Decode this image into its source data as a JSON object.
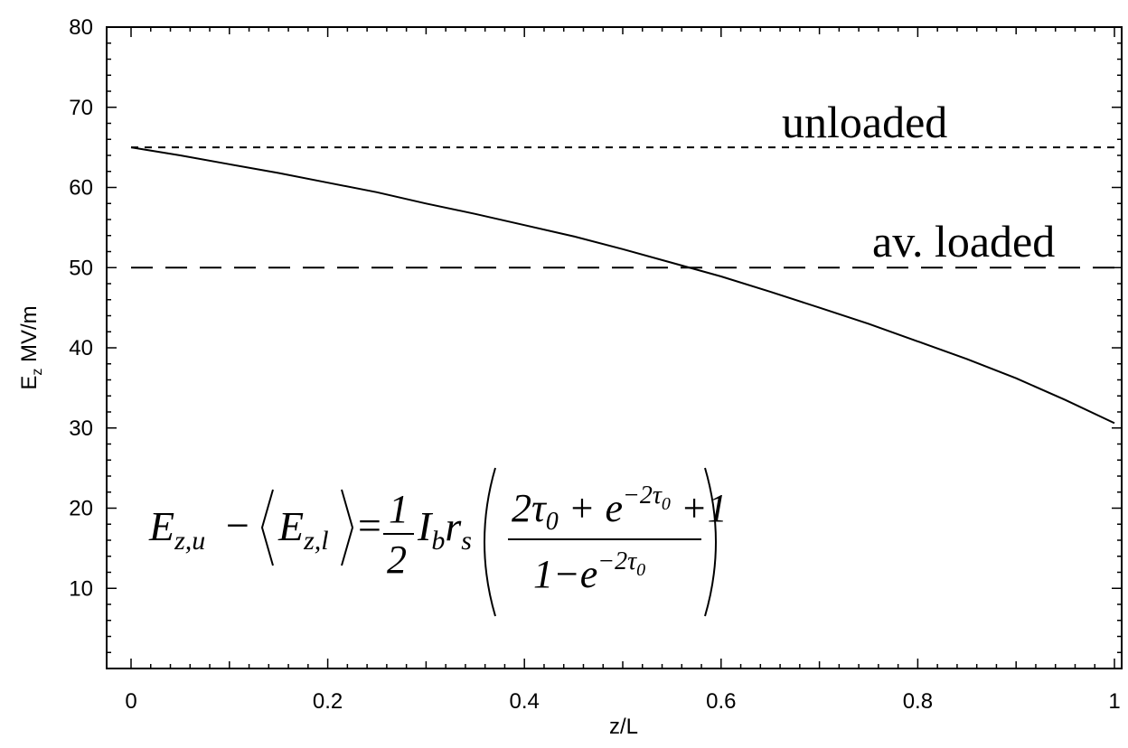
{
  "chart_data": {
    "type": "line",
    "xlabel": "z/L",
    "ylabel_main": "E",
    "ylabel_sub": "z",
    "ylabel_unit": " MV/m",
    "xlim": [
      0,
      1
    ],
    "ylim": [
      0,
      80
    ],
    "xticks": [
      0,
      0.2,
      0.4,
      0.6,
      0.8,
      1
    ],
    "xtick_labels": [
      "0",
      "0.2",
      "0.4",
      "0.6",
      "0.8",
      "1"
    ],
    "yticks": [
      10,
      20,
      30,
      40,
      50,
      60,
      70,
      80
    ],
    "ytick_labels": [
      "10",
      "20",
      "30",
      "40",
      "50",
      "60",
      "70",
      "80"
    ],
    "grid": false,
    "series": [
      {
        "x": [
          0,
          0.05,
          0.1,
          0.15,
          0.2,
          0.25,
          0.3,
          0.35,
          0.4,
          0.45,
          0.5,
          0.55,
          0.6,
          0.65,
          0.7,
          0.75,
          0.8,
          0.85,
          0.9,
          0.95,
          1.0
        ],
        "values": [
          65,
          64.0,
          62.9,
          61.8,
          60.6,
          59.4,
          58.0,
          56.7,
          55.3,
          53.9,
          52.3,
          50.6,
          48.9,
          47.0,
          45.0,
          43.0,
          40.8,
          38.6,
          36.2,
          33.5,
          30.6
        ],
        "style": "solid"
      },
      {
        "x": [
          0,
          1
        ],
        "values": [
          65,
          65
        ],
        "style": "short-dash"
      },
      {
        "x": [
          0,
          1
        ],
        "values": [
          50,
          50
        ],
        "style": "long-dash"
      }
    ],
    "annotations": [
      {
        "text": "unloaded",
        "near_y": 65
      },
      {
        "text": "av. loaded",
        "near_y": 50
      }
    ],
    "formula": {
      "lhs_E": "E",
      "lhs_sub1": "z,u",
      "minus": "−",
      "bracket_E": "E",
      "bracket_sub": "z,l",
      "equals": "=",
      "half_num": "1",
      "half_den": "2",
      "I": "I",
      "I_sub": "b",
      "r": "r",
      "r_sub": "s",
      "num_a": "2τ",
      "num_a_sub": "0",
      "num_b": " + e",
      "num_b_sup": "−2τ",
      "num_b_sup_sub": "0",
      "num_c": " +1",
      "den_a": "1−e",
      "den_sup": "−2τ",
      "den_sup_sub": "0"
    }
  }
}
